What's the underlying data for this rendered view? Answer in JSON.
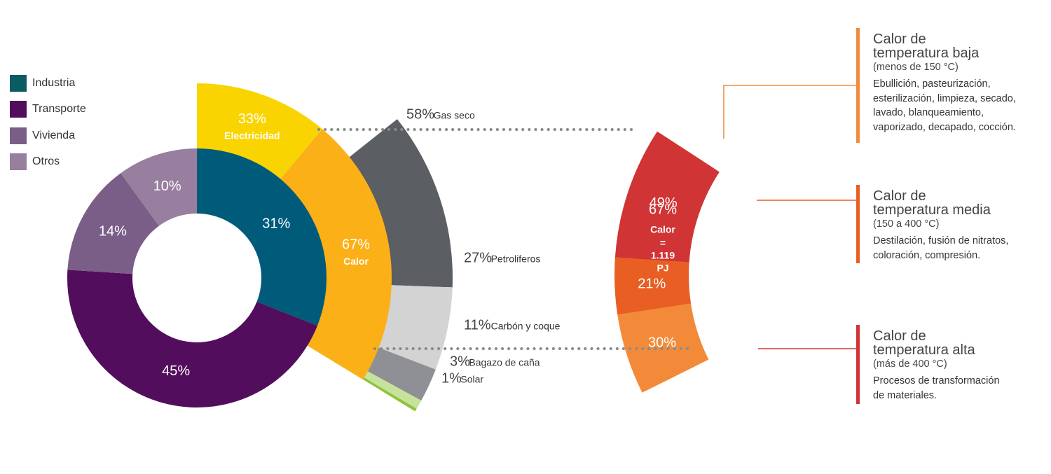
{
  "legend": [
    {
      "label": "Industria",
      "color": "#0b5b63"
    },
    {
      "label": "Transporte",
      "color": "#520d5c"
    },
    {
      "label": "Vivienda",
      "color": "#7b5e88"
    },
    {
      "label": "Otros",
      "color": "#987e9f"
    }
  ],
  "chart_data": [
    {
      "type": "pie",
      "subtype": "donut",
      "slices": [
        {
          "label": "Industria",
          "value": 31,
          "display": "31%",
          "color": "#005b7b"
        },
        {
          "label": "Transporte",
          "value": 45,
          "display": "45%",
          "color": "#520d5c"
        },
        {
          "label": "Vivienda",
          "value": 14,
          "display": "14%",
          "color": "#7b5e88"
        },
        {
          "label": "Otros",
          "value": 10,
          "display": "10%",
          "color": "#987e9f"
        }
      ]
    },
    {
      "type": "pie",
      "subtype": "industria-breakdown",
      "slices": [
        {
          "label": "Electricidad",
          "value": 33,
          "display": "33%",
          "color": "#f9d401"
        },
        {
          "label": "Calor",
          "value": 67,
          "display": "67%",
          "color": "#fbb017"
        }
      ]
    },
    {
      "type": "pie",
      "subtype": "fuel-breakdown",
      "slices": [
        {
          "label": "Gas seco",
          "value": 58,
          "display": "58%",
          "color": "#5b5e62"
        },
        {
          "label": "Petroliferos",
          "value": 27,
          "display": "27%",
          "color": "#d3d3d3"
        },
        {
          "label": "Carbón y coque",
          "value": 11,
          "display": "11%",
          "color": "#8f9095"
        },
        {
          "label": "Bagazo de caña",
          "value": 3,
          "display": "3%",
          "color": "#c7e39b"
        },
        {
          "label": "Solar",
          "value": 1,
          "display": "1%",
          "color": "#8cc53f"
        }
      ]
    },
    {
      "type": "pie",
      "subtype": "calor-breakdown",
      "center": {
        "value": "67%",
        "label": "Calor",
        "equals": "=",
        "amount": "1.119",
        "unit": "PJ",
        "color": "#fbb017"
      },
      "slices": [
        {
          "label": "Calor de temperatura baja",
          "value": 30,
          "display": "30%",
          "color": "#f28a3a"
        },
        {
          "label": "Calor de temperatura media",
          "value": 21,
          "display": "21%",
          "color": "#e85e23"
        },
        {
          "label": "Calor de temperatura alta",
          "value": 49,
          "display": "49%",
          "color": "#d03434"
        }
      ]
    }
  ],
  "heat_categories": [
    {
      "title_line1": "Calor de",
      "title_line2": "temperatura baja",
      "range": "(menos de 150 °C)",
      "description_lines": [
        "Ebullición, pasteurización,",
        "esterilización, limpieza, secado,",
        "lavado, blanqueamiento,",
        "vaporizado, decapado, cocción."
      ],
      "color": "#f28a3a"
    },
    {
      "title_line1": "Calor de",
      "title_line2": "temperatura media",
      "range": "(150 a 400 °C)",
      "description_lines": [
        "Destilación, fusión de nitratos,",
        "coloración, compresión."
      ],
      "color": "#e85e23"
    },
    {
      "title_line1": "Calor de",
      "title_line2": "temperatura alta",
      "range": "(más de 400 °C)",
      "description_lines": [
        "Procesos de transformación",
        "de materiales."
      ],
      "color": "#d03434"
    }
  ]
}
